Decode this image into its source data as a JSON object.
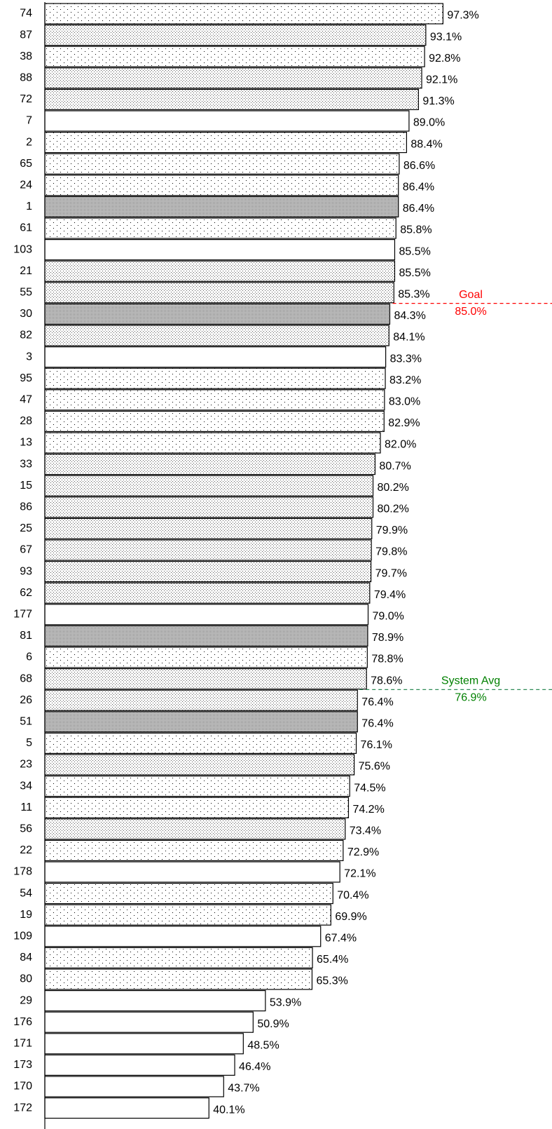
{
  "chart_data": {
    "type": "barh",
    "categories": [
      "74",
      "87",
      "38",
      "88",
      "72",
      "7",
      "2",
      "65",
      "24",
      "1",
      "61",
      "103",
      "21",
      "55",
      "30",
      "82",
      "3",
      "95",
      "47",
      "28",
      "13",
      "33",
      "15",
      "86",
      "25",
      "67",
      "93",
      "62",
      "177",
      "81",
      "6",
      "68",
      "26",
      "51",
      "5",
      "23",
      "34",
      "11",
      "56",
      "22",
      "178",
      "54",
      "19",
      "109",
      "84",
      "80",
      "29",
      "176",
      "171",
      "173",
      "170",
      "172"
    ],
    "values": [
      97.3,
      93.1,
      92.8,
      92.1,
      91.3,
      89.0,
      88.4,
      86.6,
      86.4,
      86.4,
      85.8,
      85.5,
      85.5,
      85.3,
      84.3,
      84.1,
      83.3,
      83.2,
      83.0,
      82.9,
      82.0,
      80.7,
      80.2,
      80.2,
      79.9,
      79.8,
      79.7,
      79.4,
      79.0,
      78.9,
      78.8,
      78.6,
      76.4,
      76.4,
      76.1,
      75.6,
      74.5,
      74.2,
      73.4,
      72.9,
      72.1,
      70.4,
      69.9,
      67.4,
      65.4,
      65.3,
      53.9,
      50.9,
      48.5,
      46.4,
      43.7,
      40.1
    ],
    "value_labels": [
      "97.3%",
      "93.1%",
      "92.8%",
      "92.1%",
      "91.3%",
      "89.0%",
      "88.4%",
      "86.6%",
      "86.4%",
      "86.4%",
      "85.8%",
      "85.5%",
      "85.5%",
      "85.3%",
      "84.3%",
      "84.1%",
      "83.3%",
      "83.2%",
      "83.0%",
      "82.9%",
      "82.0%",
      "80.7%",
      "80.2%",
      "80.2%",
      "79.9%",
      "79.8%",
      "79.7%",
      "79.4%",
      "79.0%",
      "78.9%",
      "78.8%",
      "78.6%",
      "76.4%",
      "76.4%",
      "76.1%",
      "75.6%",
      "74.5%",
      "74.2%",
      "73.4%",
      "72.9%",
      "72.1%",
      "70.4%",
      "69.9%",
      "67.4%",
      "65.4%",
      "65.3%",
      "53.9%",
      "50.9%",
      "48.5%",
      "46.4%",
      "43.7%",
      "40.1%"
    ],
    "fills": [
      "sparse",
      "medium",
      "sparse",
      "medium",
      "medium",
      "white",
      "sparse",
      "sparse",
      "sparse",
      "dense",
      "sparse",
      "white",
      "medium",
      "medium",
      "dense",
      "medium",
      "white",
      "sparse",
      "sparse",
      "sparse",
      "sparse",
      "medium",
      "medium",
      "medium",
      "medium",
      "medium",
      "medium",
      "medium",
      "white",
      "dense",
      "sparse",
      "medium",
      "medium",
      "dense",
      "sparse",
      "medium",
      "sparse",
      "sparse",
      "medium",
      "sparse",
      "white",
      "sparse",
      "sparse",
      "white",
      "sparse",
      "sparse",
      "white",
      "white",
      "white",
      "white",
      "white",
      "white"
    ],
    "xlim": [
      0,
      120
    ],
    "reference_lines": [
      {
        "label": "Goal",
        "value": 85.0,
        "value_label": "85.0%",
        "color": "#ff0000",
        "line_color": "#ff0000"
      },
      {
        "label": "System Avg",
        "value": 76.9,
        "value_label": "76.9%",
        "color": "#008000",
        "line_color": "#2e8b57"
      }
    ]
  }
}
